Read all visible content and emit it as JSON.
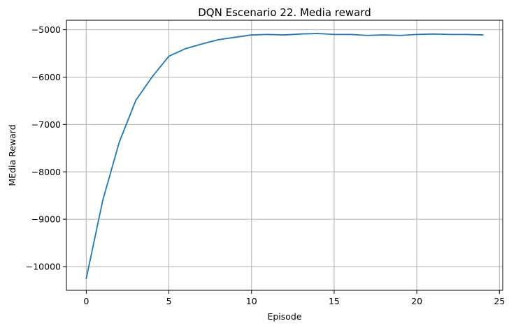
{
  "chart_data": {
    "type": "line",
    "title": "DQN Escenario 22. Media reward",
    "xlabel": "Episode",
    "ylabel": "MEdia Reward",
    "xlim": [
      -1.2,
      25.2
    ],
    "ylim": [
      -10500,
      -4800
    ],
    "grid": true,
    "x_ticks": [
      0,
      5,
      10,
      15,
      20,
      25
    ],
    "y_ticks": [
      -10000,
      -9000,
      -8000,
      -7000,
      -6000,
      -5000
    ],
    "x_tick_labels": [
      "0",
      "5",
      "10",
      "15",
      "20",
      "25"
    ],
    "y_tick_labels": [
      "−10000",
      "−9000",
      "−8000",
      "−7000",
      "−6000",
      "−5000"
    ],
    "series": [
      {
        "color": "#1f77b4",
        "x": [
          0,
          1,
          2,
          3,
          4,
          5,
          6,
          7,
          8,
          9,
          10,
          11,
          12,
          13,
          14,
          15,
          16,
          17,
          18,
          19,
          20,
          21,
          22,
          23,
          24
        ],
        "y": [
          -10250,
          -8600,
          -7370,
          -6490,
          -5990,
          -5560,
          -5400,
          -5300,
          -5210,
          -5160,
          -5110,
          -5100,
          -5110,
          -5090,
          -5080,
          -5100,
          -5100,
          -5120,
          -5110,
          -5120,
          -5100,
          -5090,
          -5100,
          -5100,
          -5110
        ]
      }
    ]
  }
}
